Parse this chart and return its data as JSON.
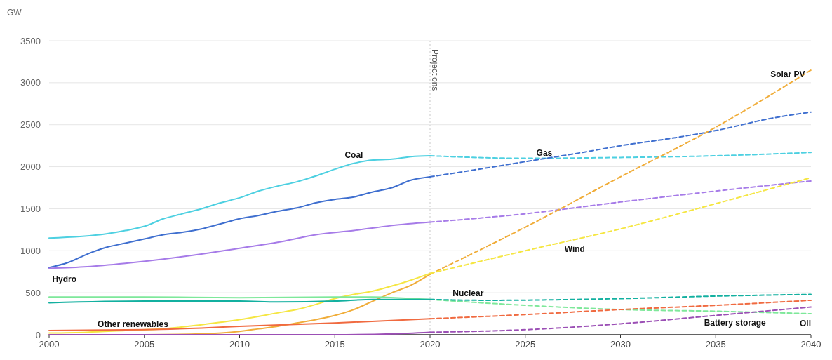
{
  "chart_data": {
    "type": "line",
    "ylabel": "GW",
    "ylim": [
      0,
      3500
    ],
    "yticks": [
      0,
      500,
      1000,
      1500,
      2000,
      2500,
      3000,
      3500
    ],
    "xlim": [
      2000,
      2040
    ],
    "xticks": [
      2000,
      2005,
      2010,
      2015,
      2020,
      2025,
      2030,
      2035,
      2040
    ],
    "grid": "y",
    "line_style": "solid",
    "marker": "none",
    "series": [
      {
        "name": "Coal",
        "color": "#4dd0e1",
        "x": [
          2000,
          2003,
          2004,
          2005,
          2006,
          2007,
          2008,
          2009,
          2010,
          2011,
          2012,
          2013,
          2014,
          2015,
          2016,
          2017,
          2018,
          2019,
          2020
        ],
        "values": [
          1150,
          1200,
          1240,
          1290,
          1380,
          1440,
          1500,
          1570,
          1630,
          1710,
          1770,
          1820,
          1890,
          1970,
          2040,
          2080,
          2090,
          2120,
          2130
        ]
      },
      {
        "color": "#4dd0e1",
        "line_style": "dashed",
        "x": [
          2020,
          2025,
          2030,
          2035,
          2040
        ],
        "values": [
          2130,
          2100,
          2110,
          2130,
          2170
        ]
      },
      {
        "color": "#3f6fcf",
        "x": [
          2000,
          2001,
          2002,
          2003,
          2004,
          2005,
          2006,
          2007,
          2008,
          2009,
          2010,
          2011,
          2012,
          2013,
          2014,
          2015,
          2016,
          2017,
          2018,
          2019,
          2020
        ],
        "values": [
          800,
          860,
          960,
          1040,
          1090,
          1140,
          1190,
          1220,
          1260,
          1320,
          1380,
          1420,
          1470,
          1510,
          1570,
          1610,
          1640,
          1700,
          1750,
          1840,
          1880
        ]
      },
      {
        "name": "Gas",
        "color": "#3f6fcf",
        "line_style": "dashed",
        "x": [
          2020,
          2022,
          2025,
          2028,
          2030,
          2033,
          2035,
          2038,
          2040
        ],
        "values": [
          1880,
          1950,
          2060,
          2170,
          2250,
          2350,
          2430,
          2580,
          2650
        ]
      },
      {
        "name": "Hydro",
        "color": "#a67be8",
        "x": [
          2000,
          2002,
          2004,
          2006,
          2008,
          2010,
          2012,
          2014,
          2016,
          2018,
          2020
        ],
        "values": [
          790,
          810,
          850,
          900,
          960,
          1030,
          1100,
          1190,
          1240,
          1300,
          1340
        ]
      },
      {
        "color": "#a67be8",
        "line_style": "dashed",
        "x": [
          2020,
          2025,
          2030,
          2035,
          2040
        ],
        "values": [
          1340,
          1440,
          1580,
          1710,
          1830
        ]
      },
      {
        "color": "#f0ad3a",
        "x": [
          2000,
          2005,
          2008,
          2010,
          2011,
          2012,
          2013,
          2014,
          2015,
          2016,
          2017,
          2018,
          2019,
          2020
        ],
        "values": [
          0,
          0,
          10,
          40,
          70,
          100,
          140,
          180,
          230,
          300,
          400,
          500,
          590,
          720
        ]
      },
      {
        "name": "Solar PV",
        "color": "#f0ad3a",
        "line_style": "dashed",
        "x": [
          2020,
          2025,
          2030,
          2035,
          2040
        ],
        "values": [
          720,
          1280,
          1880,
          2470,
          3150
        ]
      },
      {
        "color": "#f5e642",
        "x": [
          2000,
          2002,
          2004,
          2006,
          2008,
          2010,
          2012,
          2013,
          2014,
          2015,
          2016,
          2017,
          2018,
          2019,
          2020
        ],
        "values": [
          20,
          30,
          50,
          70,
          120,
          180,
          260,
          300,
          360,
          430,
          480,
          520,
          580,
          650,
          730
        ]
      },
      {
        "name": "Wind",
        "color": "#f5e642",
        "line_style": "dashed",
        "x": [
          2020,
          2025,
          2030,
          2035,
          2040
        ],
        "values": [
          730,
          1000,
          1260,
          1560,
          1870
        ]
      },
      {
        "color": "#7ee89a",
        "x": [
          2000,
          2005,
          2010,
          2015,
          2017,
          2019,
          2020
        ],
        "values": [
          450,
          450,
          440,
          450,
          450,
          430,
          420
        ]
      },
      {
        "name": "Oil",
        "color": "#7ee89a",
        "line_style": "dashed",
        "x": [
          2020,
          2025,
          2030,
          2035,
          2040
        ],
        "values": [
          420,
          350,
          300,
          280,
          250
        ]
      },
      {
        "color": "#13b0a0",
        "x": [
          2000,
          2005,
          2010,
          2012,
          2015,
          2017,
          2020
        ],
        "values": [
          380,
          400,
          400,
          390,
          400,
          420,
          420
        ]
      },
      {
        "name": "Nuclear",
        "color": "#13b0a0",
        "line_style": "dashed",
        "x": [
          2020,
          2023,
          2030,
          2035,
          2040
        ],
        "values": [
          420,
          410,
          430,
          460,
          480
        ]
      },
      {
        "name": "Other renewables",
        "color": "#f06a40",
        "x": [
          2000,
          2005,
          2008,
          2010,
          2015,
          2020
        ],
        "values": [
          50,
          60,
          80,
          100,
          140,
          190
        ]
      },
      {
        "color": "#f06a40",
        "line_style": "dashed",
        "x": [
          2020,
          2025,
          2030,
          2035,
          2040
        ],
        "values": [
          190,
          240,
          300,
          350,
          410
        ]
      },
      {
        "color": "#9b4fb5",
        "x": [
          2000,
          2015,
          2018,
          2020
        ],
        "values": [
          0,
          0,
          10,
          30
        ]
      },
      {
        "name": "Battery storage",
        "color": "#9b4fb5",
        "line_style": "dashed",
        "x": [
          2020,
          2025,
          2030,
          2035,
          2040
        ],
        "values": [
          30,
          60,
          130,
          230,
          330
        ]
      }
    ],
    "ref_lines": [
      {
        "axis": "x",
        "value": 2020,
        "label": "Projections",
        "line_style": "dotted",
        "color": "#c8c8c8"
      }
    ]
  }
}
